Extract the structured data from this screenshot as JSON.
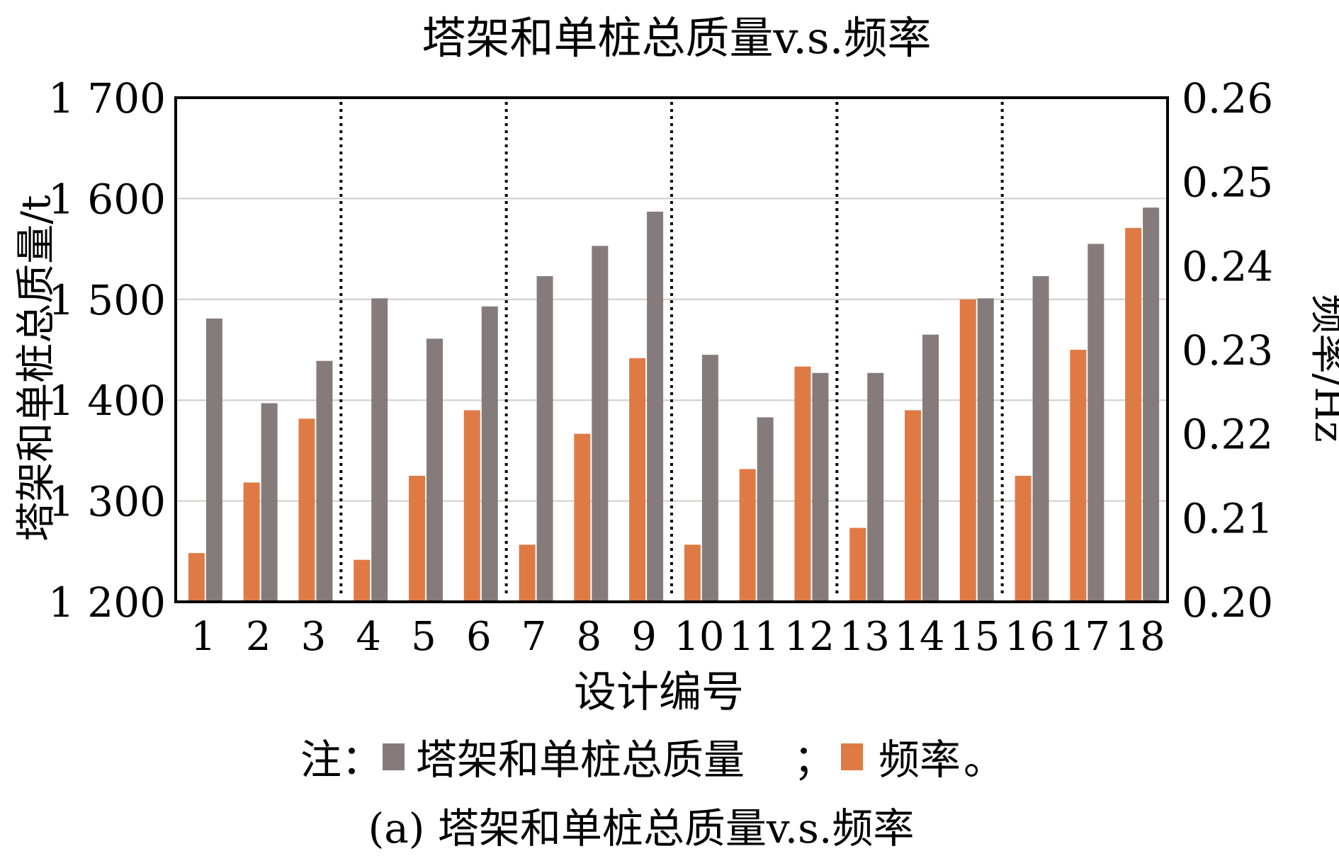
{
  "chart_data": {
    "type": "bar",
    "title": "塔架和单桩总质量v.s.频率",
    "xlabel": "设计编号",
    "ylabel_left": "塔架和单桩总质量/t",
    "ylabel_right": "频率/Hz",
    "categories": [
      "1",
      "2",
      "3",
      "4",
      "5",
      "6",
      "7",
      "8",
      "9",
      "10",
      "11",
      "12",
      "13",
      "14",
      "15",
      "16",
      "17",
      "18"
    ],
    "y_left": {
      "lim": [
        1200,
        1700
      ],
      "ticks": [
        1200,
        1300,
        1400,
        1500,
        1600,
        1700
      ],
      "tick_labels": [
        "1 200",
        "1 300",
        "1 400",
        "1 500",
        "1 600",
        "1 700"
      ]
    },
    "y_right": {
      "lim": [
        0.2,
        0.26
      ],
      "ticks": [
        0.2,
        0.21,
        0.22,
        0.23,
        0.24,
        0.25,
        0.26
      ],
      "tick_labels": [
        "0.20",
        "0.21",
        "0.22",
        "0.23",
        "0.24",
        "0.25",
        "0.26"
      ]
    },
    "series": [
      {
        "name": "塔架和单桩总质量",
        "axis": "left",
        "color": "#857b7a",
        "values": [
          1481,
          1397,
          1439,
          1501,
          1461,
          1493,
          1523,
          1553,
          1587,
          1445,
          1383,
          1427,
          1427,
          1465,
          1501,
          1523,
          1555,
          1591
        ]
      },
      {
        "name": "频率",
        "axis": "right",
        "color": "#e07a45",
        "values": [
          0.2058,
          0.2142,
          0.2218,
          0.205,
          0.215,
          0.2228,
          0.2068,
          0.22,
          0.229,
          0.2068,
          0.2158,
          0.228,
          0.2088,
          0.2228,
          0.236,
          0.215,
          0.23,
          0.2445
        ]
      }
    ],
    "group_separators_after": [
      3,
      6,
      9,
      12,
      15
    ],
    "grid": true,
    "legend_position": "bottom",
    "legend_prefix": "注：",
    "legend_separator": "；",
    "legend_suffix": "。",
    "caption": "(a) 塔架和单桩总质量v.s.频率"
  }
}
